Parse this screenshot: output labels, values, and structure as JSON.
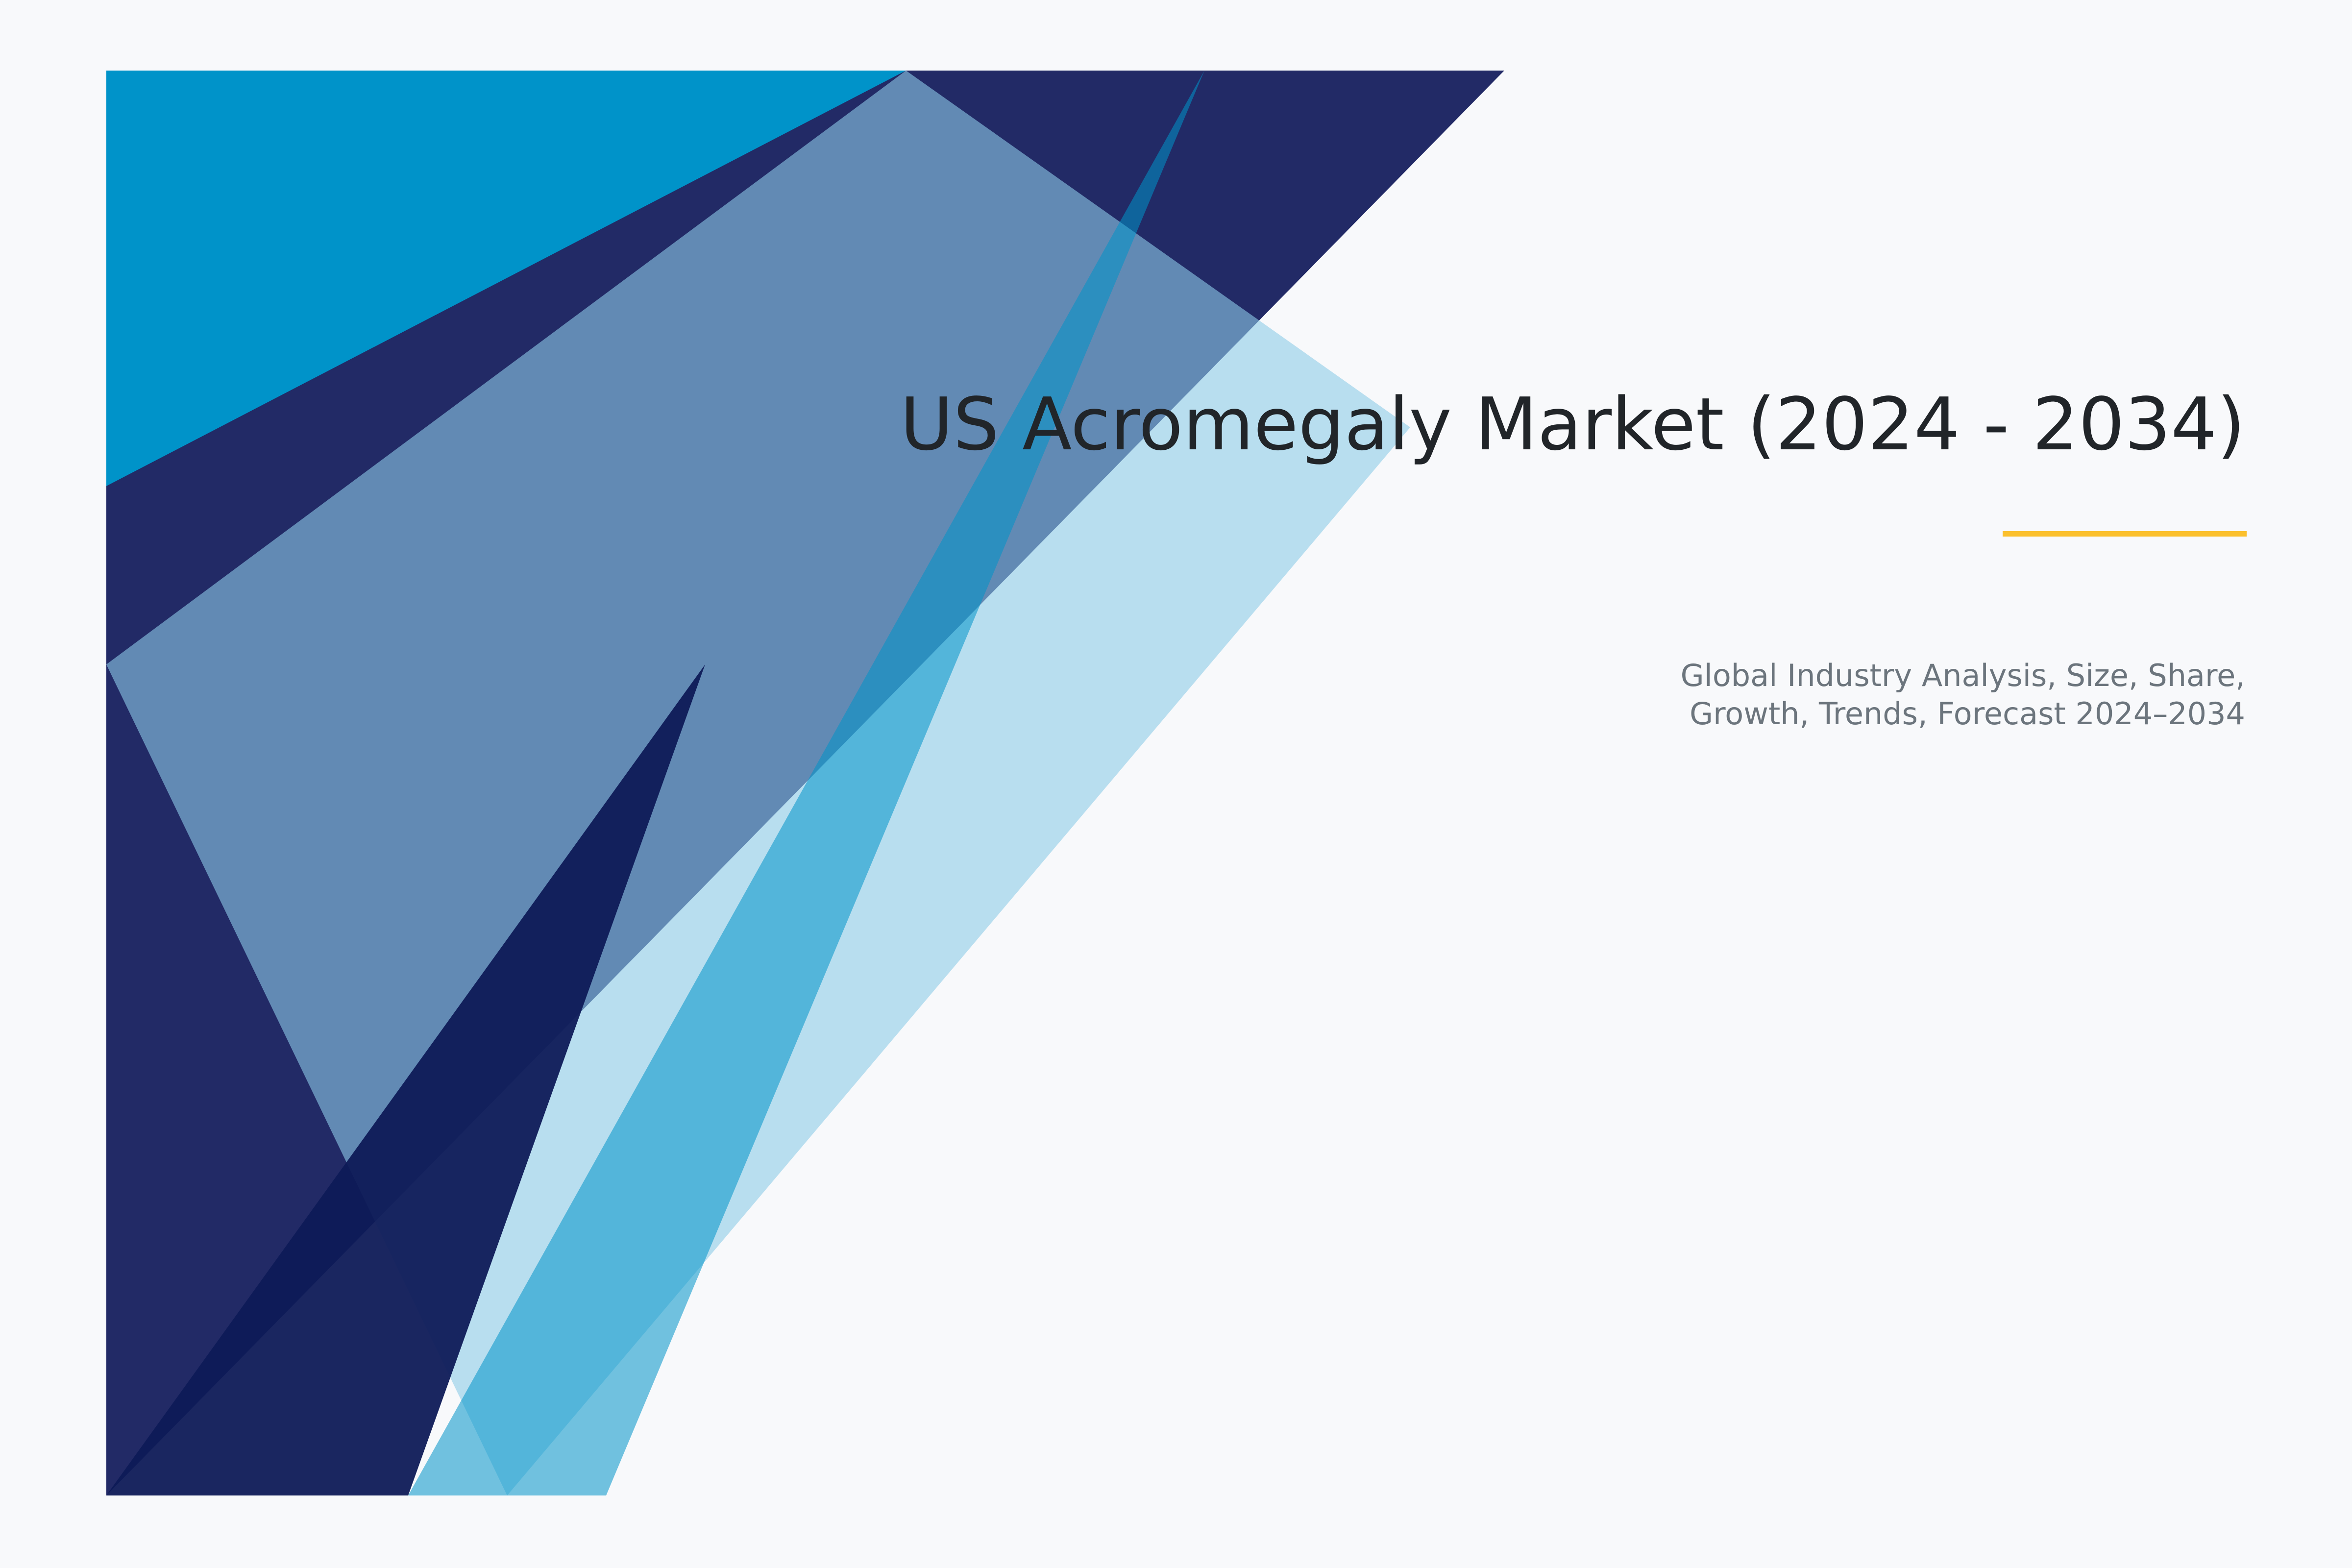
{
  "title": "US Acromegaly Market (2024 - 2034)",
  "subtitle": {
    "line1": "Global Industry Analysis, Size, Share,",
    "line2": "Growth, Trends, Forecast 2024–2034"
  },
  "colors": {
    "background": "#f8f9fb",
    "navy": "#222a66",
    "bright_blue": "#0093c9",
    "light_blue_overlay": "#8ecbe8",
    "mid_blue": "#0093c9",
    "deep_navy": "#0e1a57",
    "accent": "#fbc02d",
    "title_text": "#212529",
    "subtitle_text": "#6c757d"
  }
}
